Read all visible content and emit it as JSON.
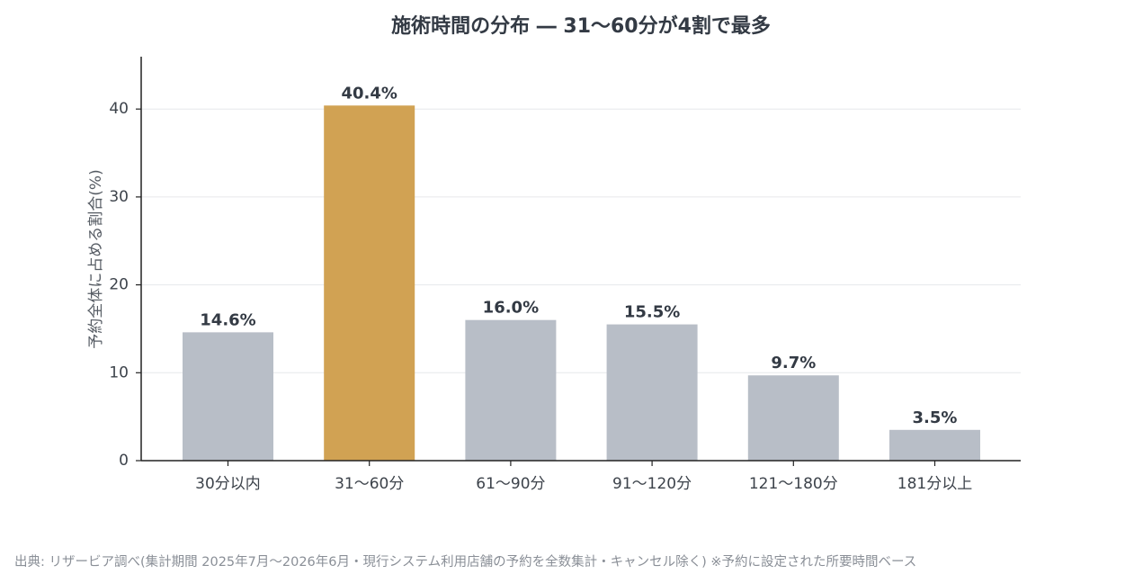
{
  "chart_data": {
    "type": "bar",
    "title": "施術時間の分布 ― 31〜60分が4割で最多",
    "ylabel": "予約全体に占める割合(%)",
    "xlabel": "",
    "categories": [
      "30分以内",
      "31〜60分",
      "61〜90分",
      "91〜120分",
      "121〜180分",
      "181分以上"
    ],
    "values": [
      14.6,
      40.4,
      16.0,
      15.5,
      9.7,
      3.5
    ],
    "value_labels": [
      "14.6%",
      "40.4%",
      "16.0%",
      "15.5%",
      "9.7%",
      "3.5%"
    ],
    "highlight_index": 1,
    "yticks": [
      0,
      10,
      20,
      30,
      40
    ],
    "ylim": [
      0,
      46
    ],
    "grid": "horizontal",
    "colors": {
      "bar": "#b8bec7",
      "highlight": "#d1a253",
      "axis": "#222222",
      "grid": "#e6e8eb"
    }
  },
  "footer": {
    "source": "出典: リザービア調べ(集計期間 2025年7月〜2026年6月・現行システム利用店舗の予約を全数集計・キャンセル除く) ※予約に設定された所要時間ベース"
  }
}
